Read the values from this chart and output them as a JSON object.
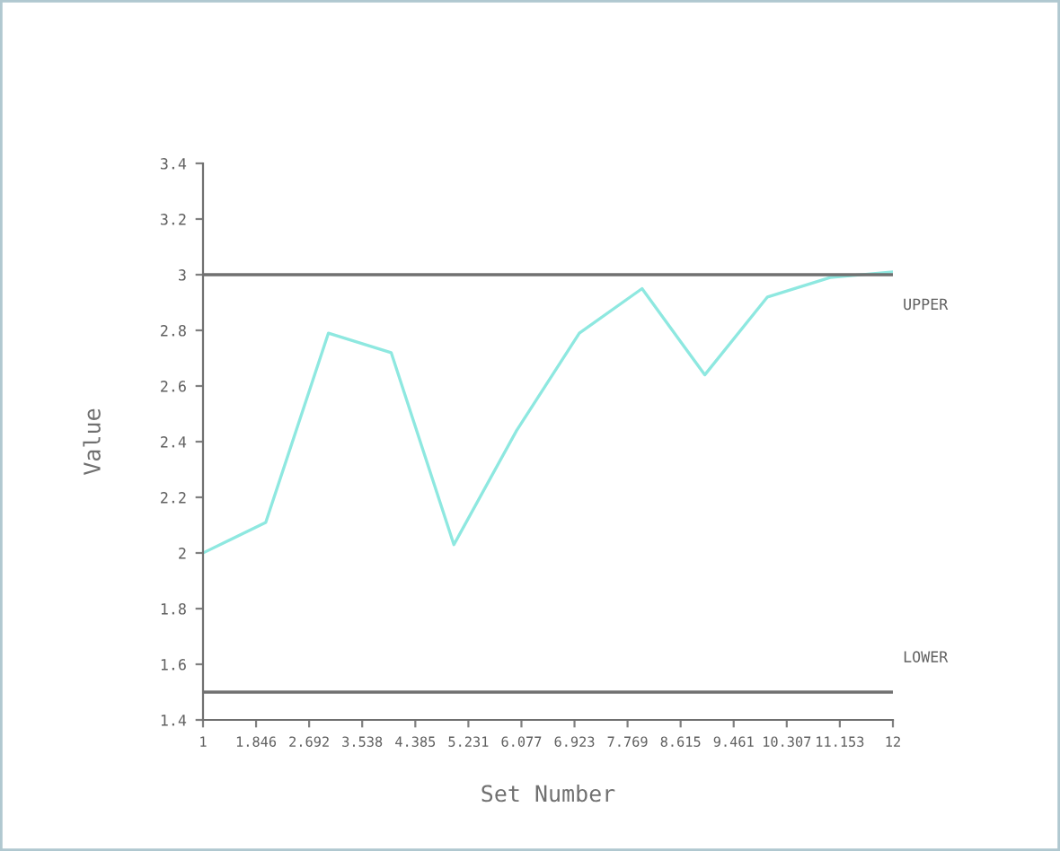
{
  "chart_data": {
    "type": "line",
    "xlabel": "Set Number",
    "ylabel": "Value",
    "x": [
      1,
      2,
      3,
      4,
      5,
      6,
      7,
      8,
      9,
      10,
      11,
      12
    ],
    "series": [
      {
        "color": "#8ee8e0",
        "values": [
          2.0,
          2.11,
          2.79,
          2.72,
          2.03,
          2.44,
          2.79,
          2.95,
          2.64,
          2.92,
          2.99,
          3.01
        ]
      }
    ],
    "xlim": [
      1,
      12
    ],
    "ylim": [
      1.4,
      3.4
    ],
    "xticks": [
      1,
      1.846,
      2.692,
      3.538,
      4.385,
      5.231,
      6.077,
      6.923,
      7.769,
      8.615,
      9.461,
      10.307,
      11.153,
      12
    ],
    "yticks": [
      1.4,
      1.6,
      1.8,
      2,
      2.2,
      2.4,
      2.6,
      2.8,
      3,
      3.2,
      3.4
    ],
    "ref_lines": [
      {
        "axis": "y",
        "value": 3.0,
        "label": "UPPER",
        "color": "#707070"
      },
      {
        "axis": "y",
        "value": 1.5,
        "label": "LOWER",
        "color": "#707070"
      }
    ],
    "grid": false,
    "marker": "none",
    "line_style": "solid"
  }
}
